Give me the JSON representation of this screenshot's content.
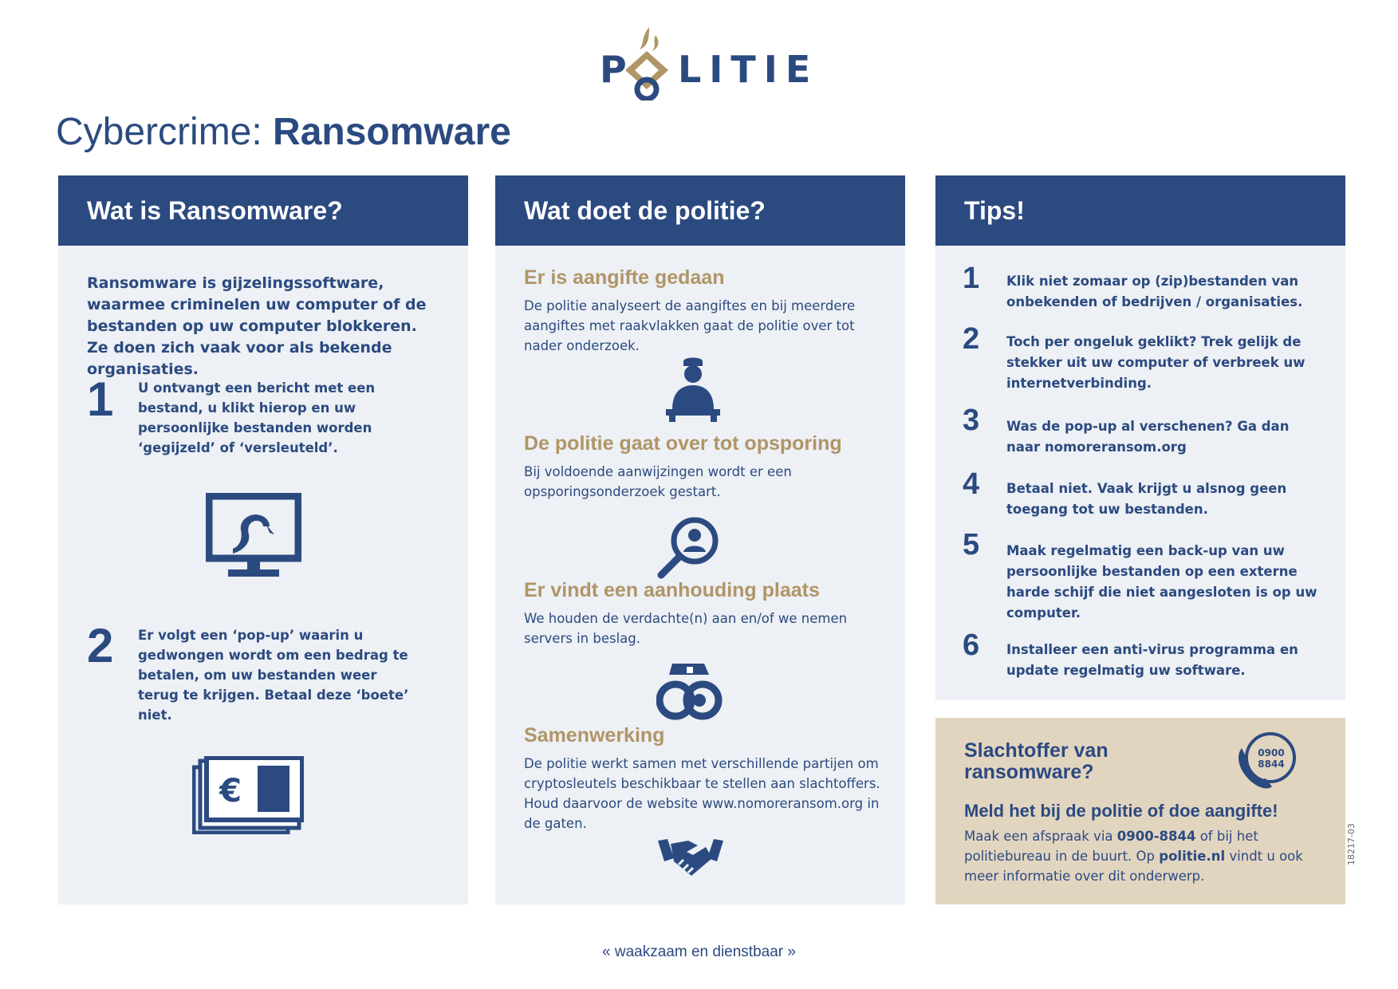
{
  "brand": {
    "logo_text_left": "P",
    "logo_text_right": "LITIE",
    "logo_text": "POLITIE"
  },
  "title": {
    "prefix": "Cybercrime: ",
    "bold": "Ransomware"
  },
  "col1": {
    "heading": "Wat is Ransomware?",
    "intro": "Ransomware is gijzelingssoftware, waarmee criminelen uw computer of de bestanden op uw computer blokkeren. Ze doen zich vaak voor als bekende organisaties.",
    "steps": [
      {
        "num": "1",
        "text": "U ontvangt een bericht met een bestand, u klikt hierop en uw persoonlijke bestanden worden ‘gegijzeld’ of ‘versleuteld’."
      },
      {
        "num": "2",
        "text": "Er volgt een ‘pop-up’ waarin u gedwongen wordt om een bedrag te betalen, om uw bestanden weer terug te krijgen. Betaal deze ‘boete’ niet."
      }
    ],
    "icons": [
      "computer-hook-icon",
      "money-euro-icon"
    ],
    "euro_symbol": "€"
  },
  "col2": {
    "heading": "Wat doet de politie?",
    "sections": [
      {
        "title": "Er is aangifte gedaan",
        "text": "De politie analyseert de aangiftes en bij meerdere aangiftes met raakvlakken gaat de politie over tot nader onderzoek.",
        "icon": "police-officer-icon"
      },
      {
        "title": "De politie gaat over tot opsporing",
        "text": "Bij voldoende aanwijzingen wordt er een opsporingsonderzoek gestart.",
        "icon": "magnifier-person-icon"
      },
      {
        "title": "Er vindt een aanhouding plaats",
        "text": "We houden de verdachte(n) aan en/of we nemen servers in beslag.",
        "icon": "handcuffs-icon"
      },
      {
        "title": "Samenwerking",
        "text": "De politie werkt samen met verschillende partijen om cryptosleutels beschikbaar te stellen aan slachtoffers. Houd daarvoor de website www.nomoreransom.org in de gaten.",
        "icon": "handshake-icon"
      }
    ]
  },
  "col3": {
    "heading": "Tips!",
    "tips": [
      {
        "num": "1",
        "text": "Klik niet zomaar op (zip)bestanden van onbekenden of bedrijven / organisaties."
      },
      {
        "num": "2",
        "text": "Toch per ongeluk geklikt? Trek gelijk de stekker uit uw computer of verbreek uw internetverbinding."
      },
      {
        "num": "3",
        "text": "Was de pop-up al verschenen? Ga dan naar nomoreransom.org"
      },
      {
        "num": "4",
        "text": "Betaal niet. Vaak krijgt u alsnog geen toegang tot uw bestanden."
      },
      {
        "num": "5",
        "text": "Maak regelmatig een back-up van uw persoonlijke bestanden op een externe harde schijf die niet aangesloten is op uw computer."
      },
      {
        "num": "6",
        "text": "Installeer een anti-virus programma en update regelmatig uw software."
      }
    ]
  },
  "victim": {
    "heading_line1": "Slachtoffer van",
    "heading_line2": "ransomware?",
    "phone_badge_line1": "0900",
    "phone_badge_line2": "8844",
    "cta": "Meld het bij de politie of doe aangifte!",
    "text_a": "Maak een afspraak via ",
    "phone": "0900-8844",
    "text_b": " of bij het politiebureau in de buurt. Op ",
    "site": "politie.nl",
    "text_c": " vindt u ook meer informatie over dit onderwerp.",
    "icon": "phone-icon"
  },
  "footer": {
    "slogan": "« waakzaam en dienstbaar »",
    "doc_code": "18217-03"
  },
  "colors": {
    "navy": "#2b4a80",
    "gold": "#b09567",
    "panel": "#edf0f4",
    "beige": "#e2d5c0"
  }
}
